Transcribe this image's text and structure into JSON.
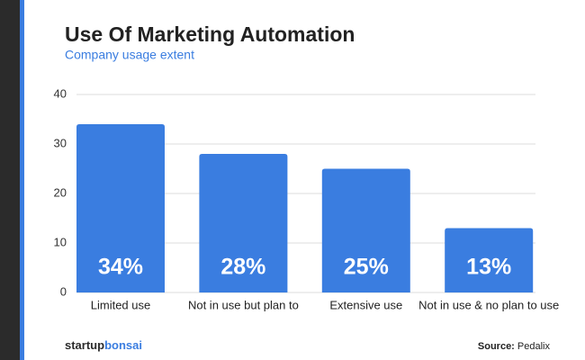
{
  "chart_data": {
    "type": "bar",
    "title": "Use Of Marketing Automation",
    "subtitle": "Company usage extent",
    "categories": [
      "Limited use",
      "Not in use but plan to",
      "Extensive use",
      "Not in use & no plan to use"
    ],
    "values": [
      34,
      28,
      25,
      13
    ],
    "value_labels": [
      "34%",
      "28%",
      "25%",
      "13%"
    ],
    "color": "#3a7de0",
    "ylim": [
      0,
      40
    ],
    "yticks": [
      0,
      10,
      20,
      30,
      40
    ],
    "grid": true
  },
  "footer": {
    "logo": {
      "first": "startup",
      "second": "bonsai"
    },
    "source": {
      "label": "Source:",
      "name": "Pedalix"
    }
  }
}
